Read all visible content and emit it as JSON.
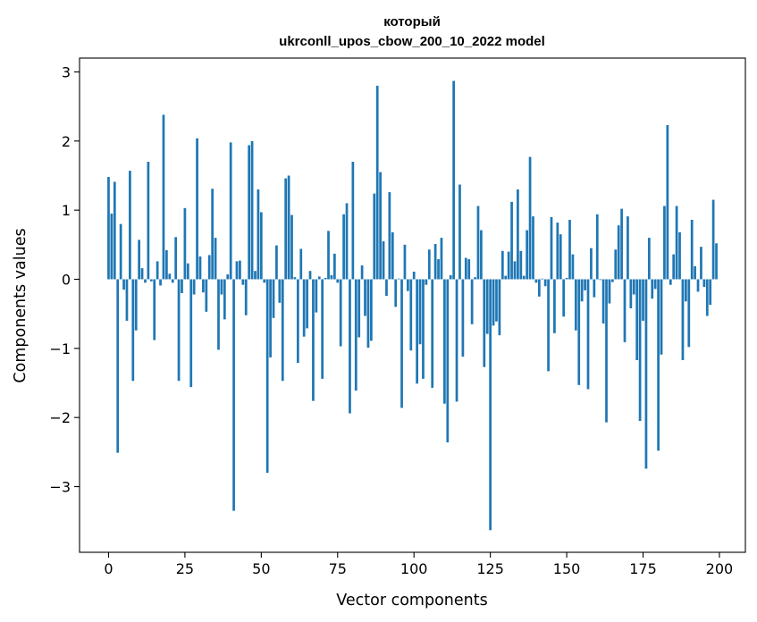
{
  "chart_data": {
    "type": "bar",
    "title": "который",
    "subtitle": "ukrconll_upos_cbow_200_10_2022 model",
    "xlabel": "Vector components",
    "ylabel": "Components values",
    "xlim": [
      -9.5,
      208.5
    ],
    "ylim": [
      -3.95,
      3.2
    ],
    "x_ticks": [
      0,
      25,
      50,
      75,
      100,
      125,
      150,
      175,
      200
    ],
    "y_ticks": [
      -3,
      -2,
      -1,
      0,
      1,
      2,
      3
    ],
    "x_tick_labels": [
      "0",
      "25",
      "50",
      "75",
      "100",
      "125",
      "150",
      "175",
      "200"
    ],
    "y_tick_labels": [
      "−3",
      "−2",
      "−1",
      "0",
      "1",
      "2",
      "3"
    ],
    "grid": false,
    "legend": "none",
    "bar_color": "#1f77b4",
    "values": [
      1.48,
      0.95,
      1.41,
      -2.51,
      0.8,
      -0.15,
      -0.6,
      1.57,
      -1.47,
      -0.74,
      0.57,
      0.16,
      -0.05,
      1.7,
      -0.03,
      -0.88,
      0.26,
      -0.09,
      2.38,
      0.42,
      0.08,
      -0.05,
      0.61,
      -1.47,
      -0.2,
      1.03,
      0.23,
      -1.56,
      -0.22,
      2.04,
      0.33,
      -0.19,
      -0.47,
      0.35,
      1.31,
      0.6,
      -1.02,
      -0.22,
      -0.58,
      0.07,
      1.98,
      -3.35,
      0.26,
      0.27,
      -0.08,
      -0.52,
      1.94,
      2.0,
      0.12,
      1.3,
      0.97,
      -0.05,
      -2.8,
      -1.13,
      -0.56,
      0.49,
      -0.34,
      -1.47,
      1.46,
      1.5,
      0.93,
      0.03,
      -1.21,
      0.44,
      -0.83,
      -0.71,
      0.12,
      -1.76,
      -0.48,
      0.04,
      -1.44,
      0.02,
      0.7,
      0.06,
      0.37,
      -0.05,
      -0.97,
      0.94,
      1.1,
      -1.94,
      1.7,
      -1.61,
      -0.84,
      0.2,
      -0.53,
      -0.99,
      -0.89,
      1.24,
      2.8,
      1.55,
      0.55,
      -0.24,
      1.26,
      0.68,
      -0.4,
      0.01,
      -1.86,
      0.5,
      -0.17,
      -1.03,
      0.11,
      -1.51,
      -0.94,
      -1.44,
      -0.08,
      0.43,
      -1.57,
      0.51,
      0.29,
      0.6,
      -1.8,
      -2.36,
      0.06,
      2.87,
      -1.77,
      1.37,
      -1.12,
      0.31,
      0.29,
      -0.65,
      0.03,
      1.06,
      0.71,
      -1.27,
      -0.79,
      -3.63,
      -0.67,
      -0.61,
      -0.81,
      0.41,
      0.05,
      0.4,
      1.12,
      0.26,
      1.3,
      0.41,
      0.05,
      0.71,
      1.77,
      0.91,
      -0.05,
      -0.25,
      0.01,
      -0.1,
      -1.33,
      0.9,
      -0.78,
      0.82,
      0.65,
      -0.54,
      0.02,
      0.86,
      0.36,
      -0.74,
      -1.53,
      -0.32,
      -0.16,
      -1.59,
      0.45,
      -0.26,
      0.94,
      -0.01,
      -0.64,
      -2.07,
      -0.35,
      -0.04,
      0.43,
      0.78,
      1.02,
      -0.91,
      0.91,
      -0.42,
      -0.22,
      -1.17,
      -2.05,
      -0.6,
      -2.74,
      0.6,
      -0.28,
      -0.14,
      -2.48,
      -1.09,
      1.06,
      2.23,
      -0.08,
      0.36,
      1.06,
      0.68,
      -1.17,
      -0.32,
      -0.98,
      0.86,
      0.19,
      -0.18,
      0.47,
      -0.11,
      -0.53,
      -0.37,
      1.15,
      0.52
    ]
  }
}
